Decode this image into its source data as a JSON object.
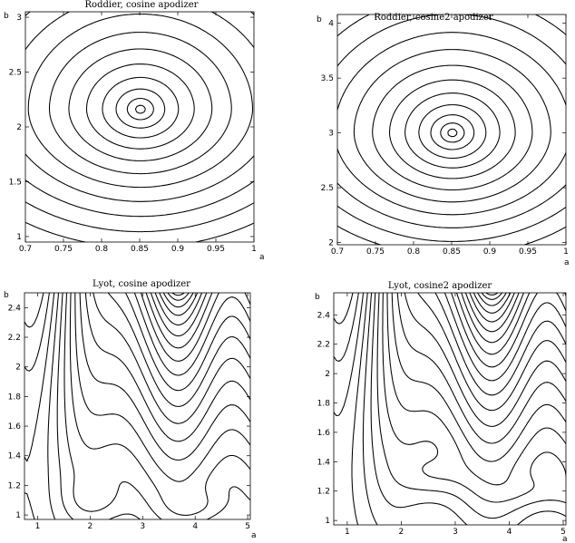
{
  "chart_data": [
    {
      "type": "line",
      "title": "Roddier, cosine apodizer",
      "xlabel": "a",
      "ylabel": "b",
      "xlim": [
        0.7,
        1.0
      ],
      "ylim": [
        0.95,
        3.05
      ],
      "xticks": [
        "0.7",
        "0.75",
        "0.8",
        "0.85",
        "0.9",
        "0.95",
        "1"
      ],
      "xtick_values": [
        0.7,
        0.75,
        0.8,
        0.85,
        0.9,
        0.95,
        1.0
      ],
      "yticks": [
        "1",
        "1.5",
        "2",
        "2.5",
        "3"
      ],
      "ytick_values": [
        1,
        1.5,
        2,
        2.5,
        3
      ],
      "grid": false,
      "contour_center": [
        0.851,
        2.16
      ],
      "contour_levels": 12
    },
    {
      "type": "line",
      "title": "Roddier, cosine2 apodizer",
      "xlabel": "a",
      "ylabel": "b",
      "xlim": [
        0.7,
        1.0
      ],
      "ylim": [
        1.98,
        4.08
      ],
      "xticks": [
        "0.7",
        "0.75",
        "0.8",
        "0.85",
        "0.9",
        "0.95",
        "1"
      ],
      "xtick_values": [
        0.7,
        0.75,
        0.8,
        0.85,
        0.9,
        0.95,
        1.0
      ],
      "yticks": [
        "2",
        "2.5",
        "3",
        "3.5",
        "4"
      ],
      "ytick_values": [
        2,
        2.5,
        3,
        3.5,
        4
      ],
      "grid": false,
      "contour_center": [
        0.851,
        3.0
      ],
      "contour_levels": 12
    },
    {
      "type": "line",
      "title": "Lyot, cosine apodizer",
      "xlabel": "a",
      "ylabel": "b",
      "xlim": [
        0.75,
        5.05
      ],
      "ylim": [
        0.97,
        2.5
      ],
      "xticks": [
        "1",
        "2",
        "3",
        "4",
        "5"
      ],
      "xtick_values": [
        1,
        2,
        3,
        4,
        5
      ],
      "yticks": [
        "1",
        "1.2",
        "1.4",
        "1.6",
        "1.8",
        "2",
        "2.2",
        "2.4"
      ],
      "ytick_values": [
        1,
        1.2,
        1.4,
        1.6,
        1.8,
        2,
        2.2,
        2.4
      ],
      "grid": false,
      "minima": [
        [
          2.1,
          1.1
        ],
        [
          4.15,
          1.05
        ]
      ],
      "contour_levels": 22
    },
    {
      "type": "line",
      "title": "Lyot, cosine2 apodizer",
      "xlabel": "a",
      "ylabel": "b",
      "xlim": [
        0.75,
        5.05
      ],
      "ylim": [
        0.97,
        2.55
      ],
      "xticks": [
        "1",
        "2",
        "3",
        "4",
        "5"
      ],
      "xtick_values": [
        1,
        2,
        3,
        4,
        5
      ],
      "yticks": [
        "1",
        "1.2",
        "1.4",
        "1.6",
        "1.8",
        "2",
        "2.2",
        "2.4"
      ],
      "ytick_values": [
        1,
        1.2,
        1.4,
        1.6,
        1.8,
        2,
        2.2,
        2.4
      ],
      "grid": false,
      "minima": [
        [
          2.6,
          1.3
        ],
        [
          4.6,
          1.2
        ]
      ],
      "contour_levels": 24
    }
  ]
}
